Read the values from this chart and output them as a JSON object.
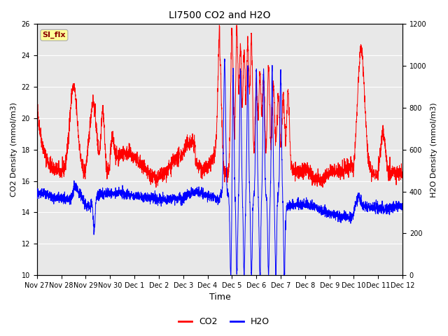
{
  "title": "LI7500 CO2 and H2O",
  "xlabel": "Time",
  "ylabel_left": "CO2 Density (mmol/m3)",
  "ylabel_right": "H2O Density (mmol/m3)",
  "co2_color": "red",
  "h2o_color": "blue",
  "ylim_left": [
    10,
    26
  ],
  "ylim_right": [
    0,
    1200
  ],
  "yticks_left": [
    10,
    12,
    14,
    16,
    18,
    20,
    22,
    24,
    26
  ],
  "yticks_right": [
    0,
    200,
    400,
    600,
    800,
    1000,
    1200
  ],
  "fig_bg_color": "#ffffff",
  "plot_bg_color": "#e8e8e8",
  "annotation_text": "SI_flx",
  "annotation_color": "#8B0000",
  "annotation_bg": "#FFFF99",
  "tick_labels": [
    "Nov 27",
    "Nov 28",
    "Nov 29",
    "Nov 30",
    "Dec 1",
    "Dec 2",
    "Dec 3",
    "Dec 4",
    "Dec 5",
    "Dec 6",
    "Dec 7",
    "Dec 8",
    "Dec 9",
    "Dec 10",
    "Dec 11",
    "Dec 12"
  ],
  "num_points": 3000,
  "seed": 42
}
